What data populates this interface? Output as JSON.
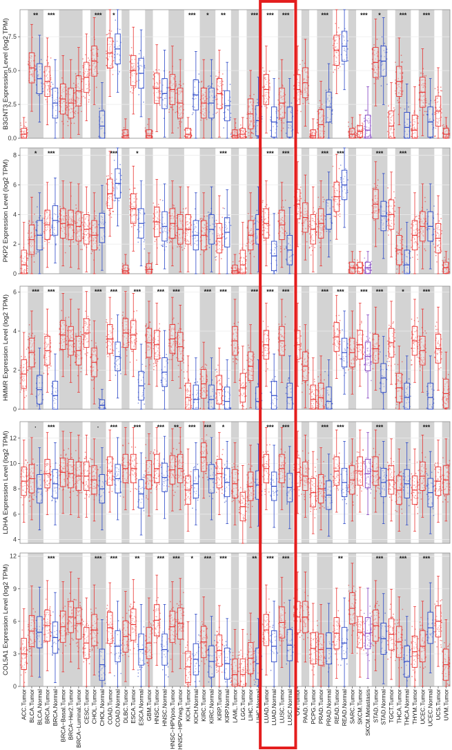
{
  "chart_data": {
    "type": "box",
    "color_tumor": "#e8312f",
    "color_normal": "#2a47c7",
    "color_metastasis": "#7d3bbf",
    "categories": [
      "ACC.Tumor",
      "BLCA.Tumor",
      "BLCA.Normal",
      "BRCA.Tumor",
      "BRCA.Normal",
      "BRCA−Basal.Tumor",
      "BRCA−Her2.Tumor",
      "BRCA−Luminal.Tumor",
      "CESC.Tumor",
      "CHOL.Tumor",
      "CHOL.Normal",
      "COAD.Tumor",
      "COAD.Normal",
      "DLBC.Tumor",
      "ESCA.Tumor",
      "ESCA.Normal",
      "GBM.Tumor",
      "HNSC.Tumor",
      "HNSC.Normal",
      "HNSC−HPVpos.Tumor",
      "HNSC−HPVneg.Tumor",
      "KICH.Tumor",
      "KICH.Normal",
      "KIRC.Tumor",
      "KIRC.Normal",
      "KIRP.Tumor",
      "KIRP.Normal",
      "LAML.Tumor",
      "LGG.Tumor",
      "LIHC.Tumor",
      "LIHC.Normal",
      "LUAD.Tumor",
      "LUAD.Normal",
      "LUSC.Tumor",
      "LUSC.Normal",
      "OV.Tumor",
      "PAAD.Tumor",
      "PCPG.Tumor",
      "PRAD.Tumor",
      "PRAD.Normal",
      "READ.Tumor",
      "READ.Normal",
      "SARC.Tumor",
      "SKCM.Tumor",
      "SKCM.Metastasis",
      "STAD.Tumor",
      "STAD.Normal",
      "TGCT.Tumor",
      "THCA.Tumor",
      "THCA.Normal",
      "THYM.Tumor",
      "UCEC.Tumor",
      "UCEC.Normal",
      "UCS.Tumor",
      "UVM.Tumor"
    ],
    "panels": [
      {
        "gene": "B3GNT3",
        "ylabel": "B3GNT3 Expression Level (log2 TPM)",
        "ylim": [
          0,
          9.5
        ],
        "yticks": [
          0,
          2.5,
          5,
          7.5
        ],
        "ytick_labels": [
          "0.0",
          "2.5",
          "5.0",
          "7.5"
        ],
        "medians": [
          0.3,
          5.2,
          4.4,
          4.2,
          2.6,
          2.9,
          2.6,
          3.5,
          4.5,
          5.7,
          0.9,
          6.3,
          6.6,
          0.2,
          5.0,
          4.8,
          0.2,
          3.7,
          3.3,
          3.6,
          2.6,
          0.3,
          3.2,
          2.6,
          2.6,
          3.3,
          2.4,
          0.2,
          0.3,
          1.8,
          1.3,
          3.6,
          1.2,
          2.6,
          1.2,
          3.6,
          4.1,
          0.2,
          1.0,
          2.3,
          6.5,
          6.8,
          0.3,
          0.5,
          0.6,
          5.6,
          5.7,
          0.9,
          4.2,
          0.8,
          0.6,
          3.4,
          1.2,
          2.0,
          0.3
        ],
        "significance": [
          {
            "group": "BLCA",
            "label": "**"
          },
          {
            "group": "BRCA",
            "label": "***"
          },
          {
            "group": "CHOL",
            "label": "***"
          },
          {
            "group": "COAD",
            "label": "*"
          },
          {
            "group": "KICH",
            "label": "***"
          },
          {
            "group": "KIRC",
            "label": "*"
          },
          {
            "group": "KIRP",
            "label": "**"
          },
          {
            "group": "LIHC",
            "label": "***"
          },
          {
            "group": "LUAD",
            "label": "***"
          },
          {
            "group": "LUSC",
            "label": "***"
          },
          {
            "group": "PRAD",
            "label": "***"
          },
          {
            "group": "SKCM",
            "label": "***"
          },
          {
            "group": "STAD",
            "label": "*"
          },
          {
            "group": "THCA",
            "label": "***"
          },
          {
            "group": "UCEC",
            "label": "***"
          }
        ]
      },
      {
        "gene": "PKP2",
        "ylabel": "PKP2 Expression Level (log2 TPM)",
        "ylim": [
          0,
          8.5
        ],
        "yticks": [
          0,
          2,
          4,
          6,
          8
        ],
        "ytick_labels": [
          "0",
          "2",
          "4",
          "6",
          "8"
        ],
        "medians": [
          0.6,
          2.3,
          2.6,
          3.3,
          3.6,
          3.4,
          3.3,
          3.2,
          3.0,
          2.6,
          3.1,
          5.4,
          6.1,
          0.2,
          4.4,
          3.4,
          0.3,
          3.5,
          3.2,
          3.4,
          3.0,
          3.0,
          2.6,
          2.6,
          3.0,
          2.4,
          2.8,
          0.2,
          0.6,
          2.6,
          3.0,
          3.4,
          1.2,
          3.3,
          1.6,
          4.7,
          3.8,
          3.0,
          3.4,
          4.0,
          5.2,
          6.0,
          0.4,
          0.4,
          0.4,
          4.7,
          3.9,
          4.0,
          1.6,
          0.6,
          2.6,
          3.2,
          3.2,
          2.4,
          0.4
        ],
        "significance": [
          {
            "group": "BLCA",
            "label": "*"
          },
          {
            "group": "BRCA",
            "label": "***"
          },
          {
            "group": "COAD",
            "label": "***"
          },
          {
            "group": "ESCA",
            "label": "*"
          },
          {
            "group": "KIRP",
            "label": "***"
          },
          {
            "group": "LUAD",
            "label": "***"
          },
          {
            "group": "LUSC",
            "label": "***"
          },
          {
            "group": "PRAD",
            "label": "***"
          },
          {
            "group": "READ",
            "label": "***"
          },
          {
            "group": "STAD",
            "label": "***"
          },
          {
            "group": "THCA",
            "label": "***"
          }
        ]
      },
      {
        "gene": "HMMR",
        "ylabel": "HMMR Expression Level (log2 TPM)",
        "ylim": [
          0,
          6.3
        ],
        "yticks": [
          0,
          2,
          4,
          6
        ],
        "ytick_labels": [
          "0",
          "2",
          "4",
          "6"
        ],
        "medians": [
          1.8,
          2.9,
          1.0,
          3.0,
          0.7,
          3.8,
          3.5,
          3.0,
          3.9,
          2.4,
          0.2,
          3.6,
          2.7,
          3.9,
          3.8,
          1.2,
          3.4,
          3.3,
          1.9,
          3.6,
          3.2,
          0.6,
          0.5,
          1.3,
          0.5,
          1.0,
          0.4,
          3.5,
          1.1,
          2.2,
          0.4,
          3.3,
          0.7,
          3.5,
          0.6,
          3.3,
          2.2,
          0.5,
          0.6,
          0.4,
          3.7,
          2.9,
          2.9,
          3.3,
          2.7,
          3.1,
          1.6,
          3.4,
          1.1,
          0.6,
          3.5,
          3.0,
          0.6,
          3.1,
          0.8
        ],
        "significance": [
          {
            "group": "BLCA",
            "label": "***"
          },
          {
            "group": "BRCA",
            "label": "***"
          },
          {
            "group": "CHOL",
            "label": "***"
          },
          {
            "group": "COAD",
            "label": "***"
          },
          {
            "group": "ESCA",
            "label": "***"
          },
          {
            "group": "HNSC",
            "label": "***"
          },
          {
            "group": "HNSC-HPV",
            "label": "***"
          },
          {
            "group": "KIRC",
            "label": "***"
          },
          {
            "group": "KIRP",
            "label": "***"
          },
          {
            "group": "LIHC",
            "label": "***"
          },
          {
            "group": "LUAD",
            "label": "***"
          },
          {
            "group": "LUSC",
            "label": "***"
          },
          {
            "group": "PRAD",
            "label": "***"
          },
          {
            "group": "READ",
            "label": "***"
          },
          {
            "group": "SKCM",
            "label": "***"
          },
          {
            "group": "STAD",
            "label": "***"
          },
          {
            "group": "THCA",
            "label": "*"
          },
          {
            "group": "UCEC",
            "label": "***"
          }
        ]
      },
      {
        "gene": "LDHA",
        "ylabel": "LDHA Expression Level (log2 TPM)",
        "ylim": [
          3.7,
          13.3
        ],
        "yticks": [
          4,
          6,
          8,
          10,
          12
        ],
        "ytick_labels": [
          "4",
          "6",
          "8",
          "10",
          "12"
        ],
        "medians": [
          8.6,
          8.8,
          8.0,
          9.2,
          8.4,
          9.3,
          9.2,
          9.0,
          9.0,
          8.7,
          8.0,
          9.4,
          8.8,
          9.6,
          9.6,
          7.6,
          9.1,
          9.6,
          8.9,
          9.5,
          9.6,
          7.9,
          8.4,
          10.5,
          8.8,
          9.2,
          8.5,
          8.4,
          6.6,
          8.2,
          8.3,
          9.6,
          8.2,
          9.6,
          8.1,
          9.3,
          9.0,
          7.7,
          8.0,
          7.5,
          9.4,
          8.5,
          8.7,
          9.4,
          9.2,
          9.4,
          8.5,
          8.7,
          7.9,
          8.4,
          7.9,
          9.0,
          7.7,
          8.6,
          8.7
        ],
        "significance": [
          {
            "group": "BLCA",
            "label": "·"
          },
          {
            "group": "BRCA",
            "label": "***"
          },
          {
            "group": "CHOL",
            "label": "·"
          },
          {
            "group": "COAD",
            "label": "***"
          },
          {
            "group": "ESCA",
            "label": "***"
          },
          {
            "group": "HNSC",
            "label": "***"
          },
          {
            "group": "HNSC-HPV",
            "label": "**"
          },
          {
            "group": "KICH",
            "label": "***"
          },
          {
            "group": "KIRC",
            "label": "***"
          },
          {
            "group": "KIRP",
            "label": "*"
          },
          {
            "group": "LUAD",
            "label": "***"
          },
          {
            "group": "LUSC",
            "label": "***"
          },
          {
            "group": "PRAD",
            "label": "***"
          },
          {
            "group": "READ",
            "label": "***"
          },
          {
            "group": "STAD",
            "label": "***"
          },
          {
            "group": "UCEC",
            "label": "***"
          }
        ]
      },
      {
        "gene": "COL5A1",
        "ylabel": "COL5A1 Expression Level (log2 TPM)",
        "ylim": [
          0,
          12.3
        ],
        "yticks": [
          0,
          3,
          6,
          9,
          12
        ],
        "ytick_labels": [
          "0",
          "3",
          "6",
          "9",
          "12"
        ],
        "medians": [
          3.0,
          5.1,
          5.0,
          5.6,
          4.5,
          5.5,
          6.4,
          5.8,
          4.0,
          5.2,
          2.0,
          5.4,
          3.7,
          4.6,
          5.7,
          3.4,
          4.0,
          6.1,
          3.4,
          5.5,
          5.8,
          1.8,
          2.5,
          4.1,
          2.3,
          3.3,
          2.1,
          1.1,
          1.1,
          2.6,
          2.1,
          5.2,
          3.7,
          5.9,
          3.8,
          6.4,
          6.4,
          3.5,
          3.4,
          3.5,
          4.9,
          4.0,
          7.2,
          5.0,
          4.9,
          5.6,
          4.4,
          4.8,
          4.1,
          2.3,
          3.2,
          3.7,
          5.4,
          6.0,
          2.0
        ],
        "significance": [
          {
            "group": "BRCA",
            "label": "***"
          },
          {
            "group": "CHOL",
            "label": "***"
          },
          {
            "group": "COAD",
            "label": "***"
          },
          {
            "group": "ESCA",
            "label": "**"
          },
          {
            "group": "HNSC",
            "label": "***"
          },
          {
            "group": "HNSC-HPV",
            "label": "***"
          },
          {
            "group": "KICH",
            "label": "*"
          },
          {
            "group": "KIRC",
            "label": "***"
          },
          {
            "group": "KIRP",
            "label": "***"
          },
          {
            "group": "LIHC",
            "label": "**"
          },
          {
            "group": "LUAD",
            "label": "***"
          },
          {
            "group": "LUSC",
            "label": "***"
          },
          {
            "group": "READ",
            "label": "**"
          },
          {
            "group": "STAD",
            "label": "***"
          },
          {
            "group": "THCA",
            "label": "***"
          },
          {
            "group": "UCEC",
            "label": "***"
          }
        ]
      }
    ],
    "highlight": {
      "from": "LUAD.Tumor",
      "to": "LUSC.Normal",
      "color": "#e41e1e"
    }
  }
}
